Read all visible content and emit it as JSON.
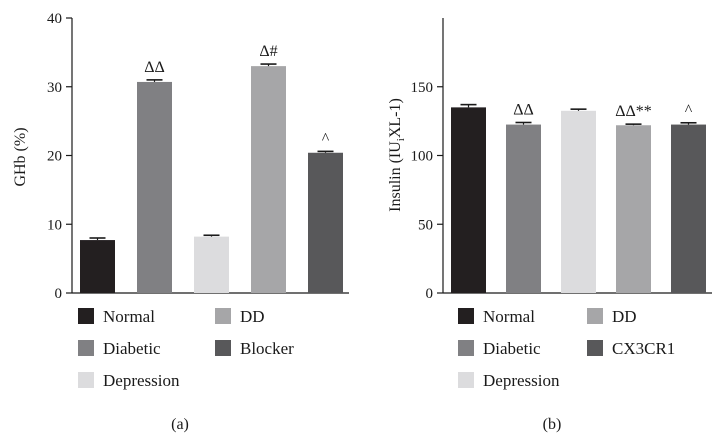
{
  "chart_data": [
    {
      "type": "bar",
      "panel_label": "(a)",
      "ylabel": "GHb (%)",
      "ylim": [
        0,
        40
      ],
      "yticks": [
        0,
        10,
        20,
        30,
        40
      ],
      "categories": [
        "Normal",
        "Diabetic",
        "Depression",
        "DD",
        "Blocker"
      ],
      "values": [
        7.7,
        30.7,
        8.2,
        33.0,
        20.4
      ],
      "errors": [
        0.3,
        0.3,
        0.2,
        0.3,
        0.2
      ],
      "colors": [
        "#231f20",
        "#808083",
        "#dcdcde",
        "#a6a6a8",
        "#58585a"
      ],
      "bar_labels": [
        "",
        "ΔΔ",
        "",
        "Δ#",
        "^"
      ],
      "legend": {
        "placement": "below",
        "entries": [
          {
            "label": "Normal",
            "color": "#231f20"
          },
          {
            "label": "DD",
            "color": "#a6a6a8"
          },
          {
            "label": "Diabetic",
            "color": "#808083"
          },
          {
            "label": "Blocker",
            "color": "#58585a"
          },
          {
            "label": "Depression",
            "color": "#dcdcde"
          }
        ]
      },
      "grid": false
    },
    {
      "type": "bar",
      "panel_label": "(b)",
      "ylabel": "Insulin (IU",
      "ylabel_sub": "i",
      "ylabel_tail": "XL-1)",
      "ylim": [
        0,
        200
      ],
      "yticks": [
        0,
        50,
        100,
        150
      ],
      "categories": [
        "Normal",
        "Diabetic",
        "Depression",
        "DD",
        "CX3CR1"
      ],
      "values": [
        135,
        122.5,
        132.5,
        122,
        122.5
      ],
      "errors": [
        2.0,
        1.5,
        1.2,
        0.8,
        1.3
      ],
      "colors": [
        "#231f20",
        "#808083",
        "#dcdcde",
        "#a6a6a8",
        "#58585a"
      ],
      "bar_labels": [
        "",
        "ΔΔ",
        "",
        "ΔΔ**",
        "^"
      ],
      "legend": {
        "placement": "below",
        "entries": [
          {
            "label": "Normal",
            "color": "#231f20"
          },
          {
            "label": "DD",
            "color": "#a6a6a8"
          },
          {
            "label": "Diabetic",
            "color": "#808083"
          },
          {
            "label": "CX3CR1",
            "color": "#58585a"
          },
          {
            "label": "Depression",
            "color": "#dcdcde"
          }
        ]
      },
      "grid": false
    }
  ]
}
